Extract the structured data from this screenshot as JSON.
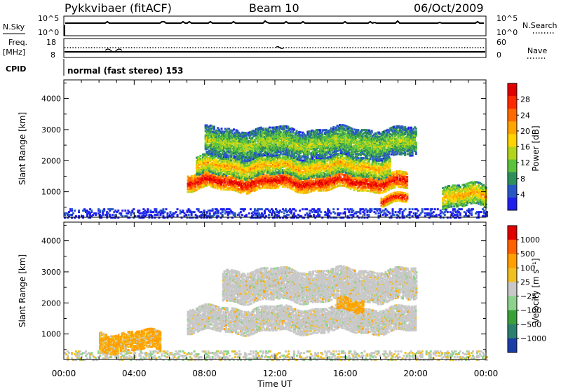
{
  "header": {
    "station": "Pykkvibaer (fitACF)",
    "beam": "Beam 10",
    "date": "06/Oct/2009"
  },
  "top_panels": {
    "nsky_label": "N.Sky",
    "nsky_ticks": [
      "10^5",
      "10^0"
    ],
    "nsearch_label": "N.Search",
    "nsearch_ticks": [
      "10^5",
      "10^0"
    ],
    "freq_label": "Freq.",
    "freq_unit": "[MHz]",
    "freq_ticks": [
      "18",
      "8"
    ],
    "nave_label": "Nave",
    "nave_ticks": [
      "60",
      "0"
    ],
    "cpid_label": "CPID",
    "cpid_text": "normal (fast stereo) 153"
  },
  "chart_data": [
    {
      "type": "heatmap",
      "name": "power",
      "ylabel": "Slant Range [km]",
      "yticks": [
        "1000",
        "2000",
        "3000",
        "4000"
      ],
      "ylim": [
        180,
        4600
      ],
      "xlim": [
        0,
        24
      ],
      "colorbar": {
        "label": "Power [dB]",
        "ticks": [
          "4",
          "8",
          "12",
          "16",
          "20",
          "24",
          "28"
        ],
        "colors": [
          "#1f1ff0",
          "#2858c8",
          "#2e8f5a",
          "#5cc23c",
          "#b4d41c",
          "#ffd400",
          "#ffa500",
          "#ff6a00",
          "#ff2a00",
          "#e00000"
        ]
      },
      "features": [
        {
          "t0": 7.0,
          "t1": 19.5,
          "r_center": 1350,
          "r_spread": 250,
          "level": "high"
        },
        {
          "t0": 7.5,
          "t1": 18.5,
          "r_center": 1850,
          "r_spread": 300,
          "level": "medium"
        },
        {
          "t0": 8.0,
          "t1": 20.0,
          "r_center": 2600,
          "r_spread": 450,
          "level": "low"
        },
        {
          "t0": 18.0,
          "t1": 19.5,
          "r_center": 800,
          "r_spread": 150,
          "level": "high"
        },
        {
          "t0": 21.5,
          "t1": 24.0,
          "r_center": 900,
          "r_spread": 350,
          "level": "medium"
        }
      ]
    },
    {
      "type": "heatmap",
      "name": "velocity",
      "ylabel": "Slant Range [km]",
      "yticks": [
        "1000",
        "2000",
        "3000",
        "4000"
      ],
      "ylim": [
        180,
        4600
      ],
      "xlim": [
        0,
        24
      ],
      "colorbar": {
        "label": "Velocity [m s⁻¹]",
        "ticks": [
          "1000",
          "500",
          "100",
          "25",
          "−25",
          "−100",
          "−500",
          "−1000"
        ],
        "colors": [
          "#1a3ea8",
          "#2d7f6e",
          "#3aa03a",
          "#8cd28c",
          "#c8c8c8",
          "#f0c020",
          "#ffa000",
          "#ff6000",
          "#e00000"
        ]
      },
      "features": [
        {
          "t0": 7.0,
          "t1": 20.0,
          "r_center": 1500,
          "r_spread": 400,
          "level": "grey"
        },
        {
          "t0": 9.0,
          "t1": 20.0,
          "r_center": 2600,
          "r_spread": 500,
          "level": "grey"
        },
        {
          "t0": 15.5,
          "t1": 17.0,
          "r_center": 1950,
          "r_spread": 200,
          "level": "orange"
        },
        {
          "t0": 2.0,
          "t1": 5.5,
          "r_center": 800,
          "r_spread": 300,
          "level": "orange"
        }
      ]
    }
  ],
  "x_axis": {
    "label": "Time UT",
    "ticks": [
      "00:00",
      "04:00",
      "08:00",
      "12:00",
      "16:00",
      "20:00",
      "00:00"
    ]
  }
}
